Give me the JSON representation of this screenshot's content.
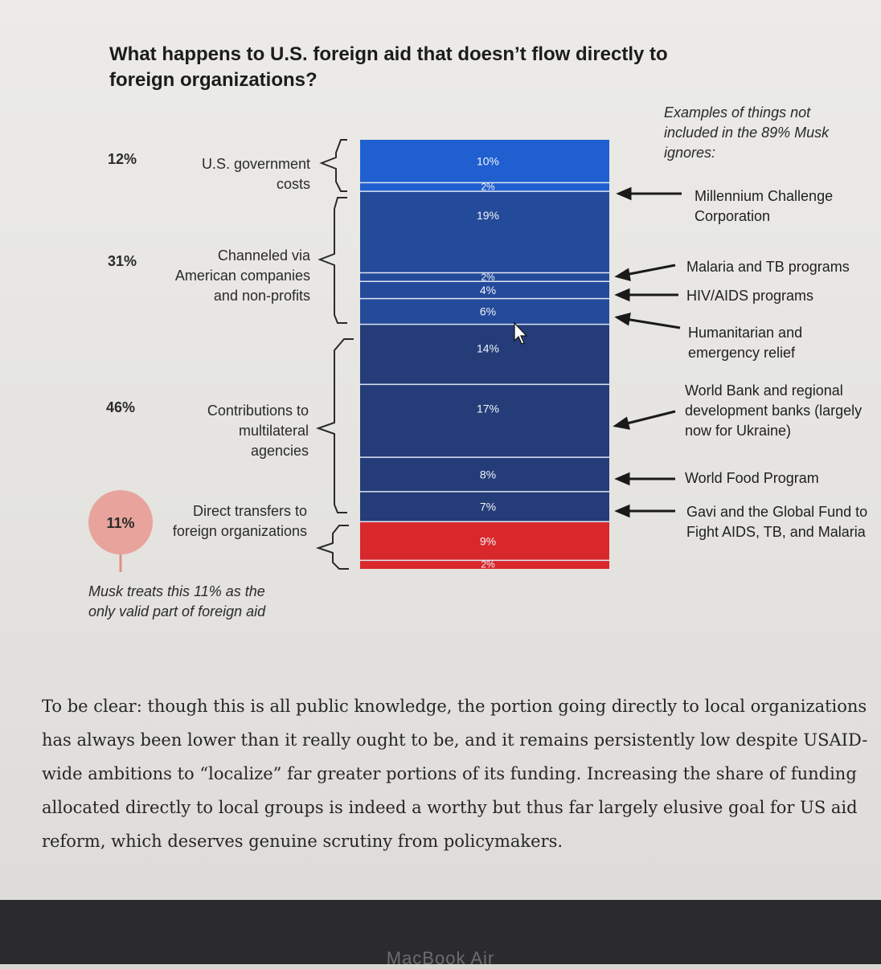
{
  "title": "What happens to U.S. foreign aid that doesn’t flow directly to foreign organizations?",
  "groups": [
    {
      "pct": "12%",
      "label": "U.S. government costs"
    },
    {
      "pct": "31%",
      "label": "Channeled via American companies and non-profits"
    },
    {
      "pct": "46%",
      "label": "Contributions to multilateral agencies"
    },
    {
      "pct": "11%",
      "label": "Direct transfers to foreign organizations"
    }
  ],
  "annotation_header": "Examples of things not included in the 89% Musk ignores:",
  "annotations": [
    "Millennium Challenge Corporation",
    "Malaria and TB programs",
    "HIV/AIDS programs",
    "Humanitarian and emergency relief",
    "World Bank and regional development banks (largely now for Ukraine)",
    "World Food Program",
    "Gavi and the Global Fund to Fight AIDS, TB, and Malaria"
  ],
  "musk_note": "Musk treats this 11% as the only valid part of foreign aid",
  "body_text": "To be clear: though this is all public knowledge, the portion going directly to local organizations has always been lower than it really ought to be, and it remains persistently low despite USAID-wide ambitions to “localize” far greater portions of its funding. Increasing the share of funding allocated directly to local groups is indeed a worthy but thus far largely elusive goal for US aid reform, which deserves genuine scrutiny from policymakers.",
  "bezel_label": "MacBook Air",
  "colors": {
    "bright_blue": "#1f5fcf",
    "mid_blue": "#244a9a",
    "dark_blue": "#243d78",
    "red": "#d8282c",
    "circle_pink": "#e8a49c"
  },
  "chart_data": {
    "type": "stacked-bar",
    "title": "What happens to U.S. foreign aid that doesn’t flow directly to foreign organizations?",
    "unit": "%",
    "segments": [
      {
        "label": "10%",
        "value": 10,
        "group": "U.S. government costs",
        "color": "#1f5fcf"
      },
      {
        "label": "2%",
        "value": 2,
        "group": "U.S. government costs",
        "color": "#1f5fcf"
      },
      {
        "label": "19%",
        "value": 19,
        "group": "Channeled via American companies and non-profits",
        "color": "#244a9a"
      },
      {
        "label": "2%",
        "value": 2,
        "group": "Channeled via American companies and non-profits",
        "color": "#244a9a"
      },
      {
        "label": "4%",
        "value": 4,
        "group": "Channeled via American companies and non-profits",
        "color": "#244a9a"
      },
      {
        "label": "6%",
        "value": 6,
        "group": "Channeled via American companies and non-profits",
        "color": "#244a9a"
      },
      {
        "label": "14%",
        "value": 14,
        "group": "Contributions to multilateral agencies",
        "color": "#243d78"
      },
      {
        "label": "17%",
        "value": 17,
        "group": "Contributions to multilateral agencies",
        "color": "#243d78"
      },
      {
        "label": "8%",
        "value": 8,
        "group": "Contributions to multilateral agencies",
        "color": "#243d78"
      },
      {
        "label": "7%",
        "value": 7,
        "group": "Contributions to multilateral agencies",
        "color": "#243d78"
      },
      {
        "label": "9%",
        "value": 9,
        "group": "Direct transfers to foreign organizations",
        "color": "#d8282c"
      },
      {
        "label": "2%",
        "value": 2,
        "group": "Direct transfers to foreign organizations",
        "color": "#d8282c"
      }
    ]
  }
}
